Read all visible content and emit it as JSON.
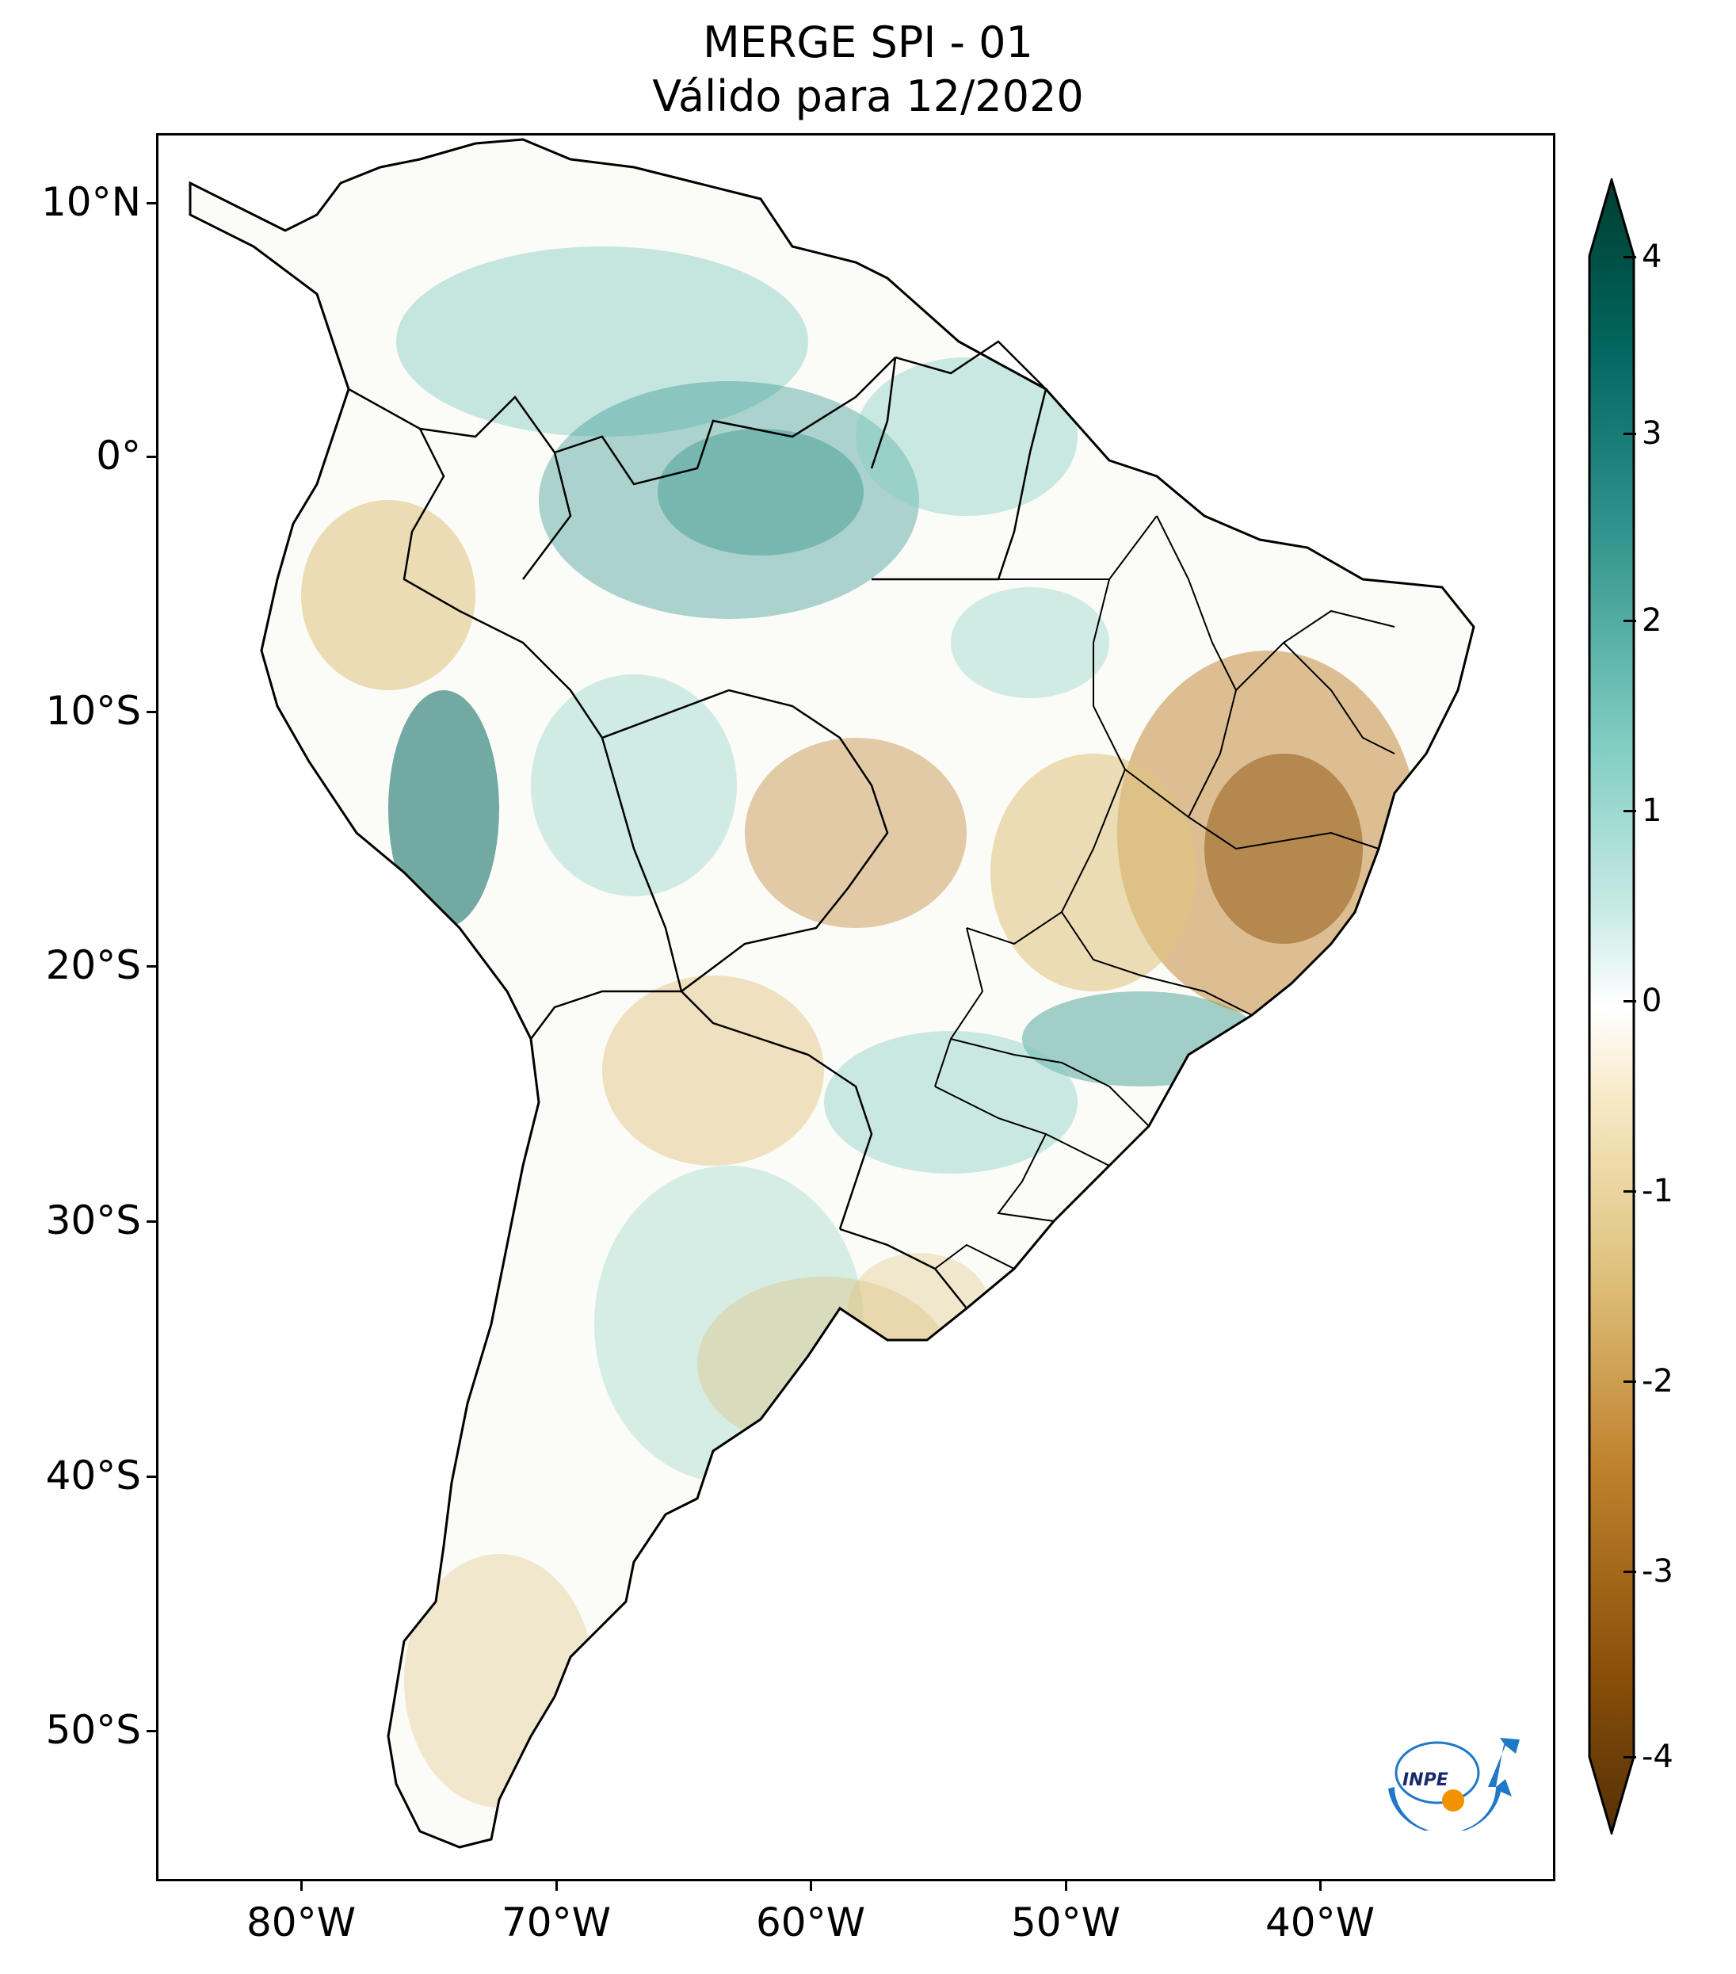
{
  "title": {
    "line1": "MERGE   SPI - 01",
    "line2": "Válido para 12/2020"
  },
  "map": {
    "region": "South America",
    "variable": "Standardized Precipitation Index (1-month)",
    "lat_labels": [
      "10°N",
      "0°",
      "10°S",
      "20°S",
      "30°S",
      "40°S",
      "50°S"
    ],
    "lon_labels": [
      "80°W",
      "70°W",
      "60°W",
      "50°W",
      "40°W"
    ]
  },
  "colorbar": {
    "min": -4,
    "max": 4,
    "extend": "both",
    "tick_labels": [
      "4",
      "3",
      "2",
      "1",
      "0",
      "-1",
      "-2",
      "-3",
      "-4"
    ],
    "colors": {
      "wet_extreme": "#003c30",
      "wet_strong": "#01665e",
      "wet": "#35978f",
      "wet_mild": "#80cdc1",
      "wet_light": "#c7eae5",
      "neutral": "#ffffff",
      "dry_light": "#f6e8c3",
      "dry_mild": "#dfc27d",
      "dry": "#bf812d",
      "dry_strong": "#8c510a",
      "dry_extreme": "#543005"
    }
  },
  "logo": {
    "text": "INPE",
    "colors": {
      "arc": "#1f78c8",
      "sun": "#f39200"
    }
  }
}
